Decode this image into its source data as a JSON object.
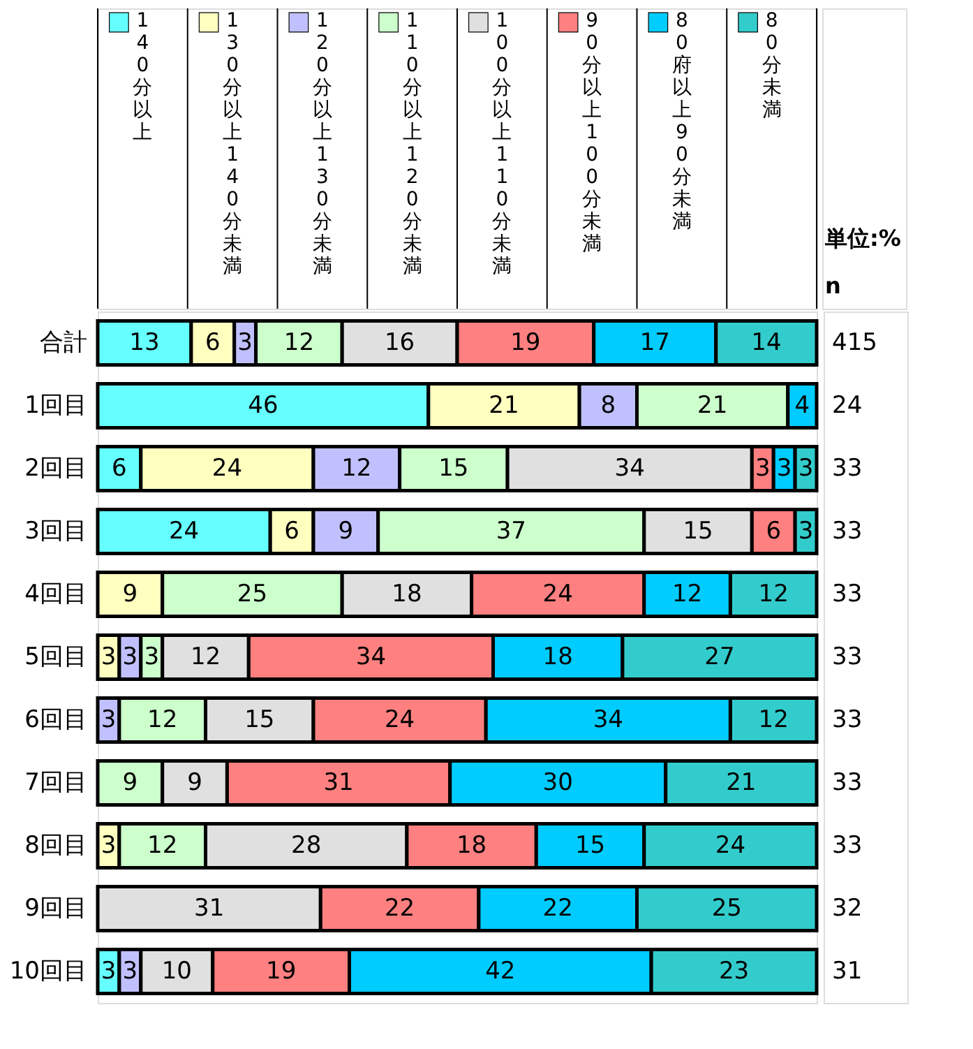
{
  "chart_data": {
    "type": "bar",
    "orientation": "horizontal",
    "stacked": true,
    "data_labels": true,
    "legend": "top",
    "grid": false,
    "tick_labels": "y",
    "categories": [
      "合計",
      "1回目",
      "2回目",
      "3回目",
      "4回目",
      "5回目",
      "6回目",
      "7回目",
      "8回目",
      "9回目",
      "10回目"
    ],
    "series": [
      {
        "name": "140分以上",
        "color": "#66ffff",
        "values": [
          13,
          46,
          6,
          24,
          null,
          null,
          null,
          null,
          null,
          null,
          3
        ]
      },
      {
        "name": "130分以上140分未満",
        "color": "#ffffc0",
        "values": [
          6,
          21,
          24,
          6,
          9,
          3,
          null,
          null,
          3,
          null,
          null
        ]
      },
      {
        "name": "120分以上130分未満",
        "color": "#c0c0ff",
        "values": [
          3,
          8,
          12,
          9,
          null,
          3,
          3,
          null,
          null,
          null,
          3
        ]
      },
      {
        "name": "110分以上120分未満",
        "color": "#ccffcc",
        "values": [
          12,
          21,
          15,
          37,
          25,
          3,
          12,
          9,
          12,
          null,
          null
        ]
      },
      {
        "name": "100分以上110分未満",
        "color": "#e0e0e0",
        "values": [
          16,
          null,
          34,
          15,
          18,
          12,
          15,
          9,
          28,
          31,
          10
        ]
      },
      {
        "name": "90分以上100分未満",
        "color": "#ff8080",
        "values": [
          19,
          null,
          3,
          6,
          24,
          34,
          24,
          31,
          18,
          22,
          19
        ]
      },
      {
        "name": "80府以上90分未満",
        "color": "#00ccff",
        "values": [
          17,
          4,
          3,
          null,
          12,
          18,
          34,
          30,
          15,
          22,
          42
        ]
      },
      {
        "name": "80分未満",
        "color": "#33cccc",
        "values": [
          14,
          null,
          3,
          3,
          12,
          27,
          12,
          21,
          24,
          25,
          23
        ]
      }
    ],
    "annotations": [
      "単位:%",
      "n",
      "415",
      "24",
      "33",
      "33",
      "33",
      "33",
      "33",
      "33",
      "33",
      "32",
      "31"
    ]
  }
}
